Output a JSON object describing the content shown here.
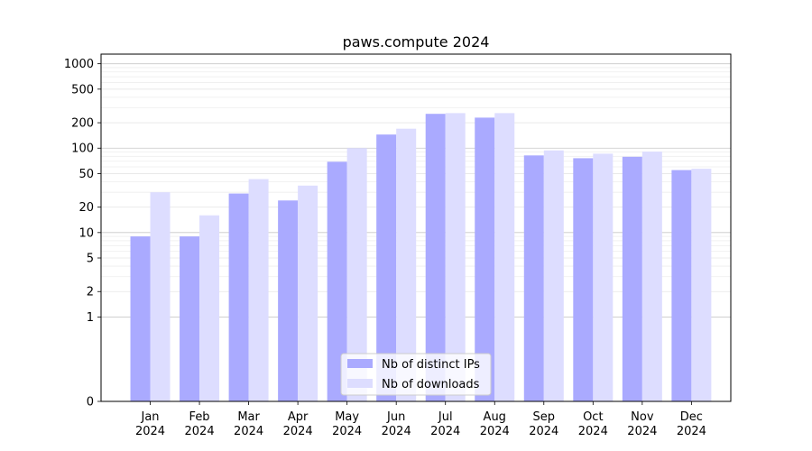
{
  "chart_data": {
    "type": "bar",
    "title": "paws.compute 2024",
    "xlabel": "",
    "ylabel": "",
    "y_scale": "symlog",
    "ylim": [
      0,
      1300
    ],
    "y_ticks": [
      0,
      1,
      2,
      5,
      10,
      20,
      50,
      100,
      200,
      500,
      1000
    ],
    "y_tick_labels": [
      "0",
      "1",
      "2",
      "5",
      "10",
      "20",
      "50",
      "100",
      "200",
      "500",
      "1000"
    ],
    "categories": [
      "Jan\n2024",
      "Feb\n2024",
      "Mar\n2024",
      "Apr\n2024",
      "May\n2024",
      "Jun\n2024",
      "Jul\n2024",
      "Aug\n2024",
      "Sep\n2024",
      "Oct\n2024",
      "Nov\n2024",
      "Dec\n2024"
    ],
    "series": [
      {
        "name": "Nb of distinct IPs",
        "color": "#aaaaff",
        "values": [
          9,
          9,
          29,
          24,
          69,
          145,
          255,
          230,
          82,
          76,
          79,
          55
        ]
      },
      {
        "name": "Nb of downloads",
        "color": "#ddddff",
        "values": [
          30,
          16,
          43,
          36,
          100,
          170,
          260,
          260,
          94,
          86,
          91,
          57
        ]
      }
    ],
    "grid": true,
    "legend_position": "bottom-center"
  }
}
